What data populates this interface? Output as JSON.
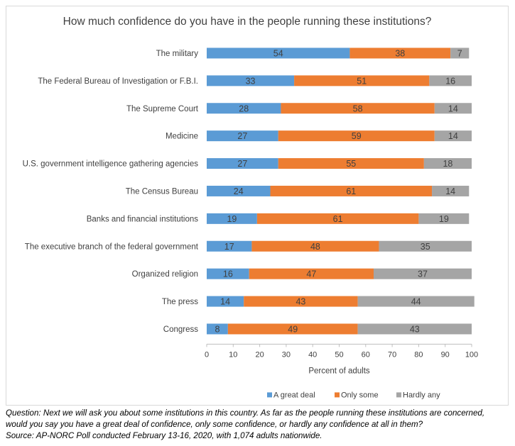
{
  "chart_data": {
    "type": "bar",
    "orientation": "horizontal",
    "stacked": true,
    "title": "How much confidence do you have in the people running these institutions?",
    "xlabel": "Percent of adults",
    "ylabel": "",
    "xlim": [
      0,
      100
    ],
    "x_ticks": [
      "0",
      "10",
      "20",
      "30",
      "40",
      "50",
      "60",
      "70",
      "80",
      "90",
      "100"
    ],
    "grid": false,
    "legend_position": "bottom",
    "categories": [
      "The military",
      "The Federal Bureau of Investigation or F.B.I.",
      "The Supreme Court",
      "Medicine",
      "U.S. government intelligence gathering agencies",
      "The Census Bureau",
      "Banks and financial institutions",
      "The executive branch of the federal government",
      "Organized religion",
      "The press",
      "Congress"
    ],
    "series": [
      {
        "name": "A great deal",
        "color": "#5b9bd5",
        "values": [
          54,
          33,
          28,
          27,
          27,
          24,
          19,
          17,
          16,
          14,
          8
        ]
      },
      {
        "name": "Only some",
        "color": "#ed7d31",
        "values": [
          38,
          51,
          58,
          59,
          55,
          61,
          61,
          48,
          47,
          43,
          49
        ]
      },
      {
        "name": "Hardly any",
        "color": "#a5a5a5",
        "values": [
          7,
          16,
          14,
          14,
          18,
          14,
          19,
          35,
          37,
          44,
          43
        ]
      }
    ]
  },
  "footnote": {
    "question_line1": "Question: Next we will ask you about some institutions in this country. As far as the people running these institutions are concerned,",
    "question_line2": "would you say you have a great deal of confidence, only some confidence, or hardly any confidence at all in them?",
    "source": "Source: AP-NORC Poll conducted February 13-16, 2020, with 1,074 adults nationwide."
  }
}
